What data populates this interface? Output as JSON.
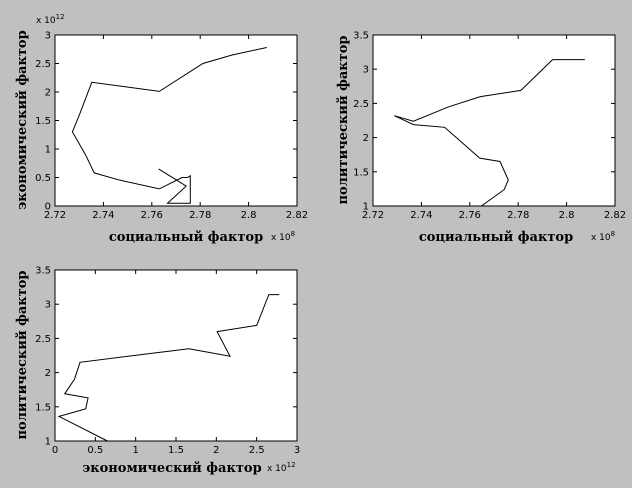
{
  "figure": {
    "background": "#c0c0c0",
    "axes_background": "#ffffff",
    "line_color": "#000000"
  },
  "chart_data": [
    {
      "type": "line",
      "xlabel": "социальный фактор",
      "ylabel": "экономический фактор",
      "x_exponent_label": "x 10",
      "x_exponent": "8",
      "y_exponent_label": "x 10",
      "y_exponent": "12",
      "xlim": [
        2.72,
        2.82
      ],
      "ylim": [
        0,
        3
      ],
      "xticks": [
        "2.72",
        "2.74",
        "2.76",
        "2.78",
        "2.8",
        "2.82"
      ],
      "yticks": [
        "0",
        "0.5",
        "1",
        "1.5",
        "2",
        "2.5",
        "3"
      ],
      "x": [
        2.8075,
        2.7932,
        2.7811,
        2.7631,
        2.7352,
        2.7301,
        2.7272,
        2.7326,
        2.7362,
        2.747,
        2.7631,
        2.7725,
        2.7748,
        2.7759,
        2.7759,
        2.7665,
        2.7742,
        2.7628
      ],
      "y": [
        2.78,
        2.65,
        2.5,
        2.01,
        2.17,
        1.6,
        1.3,
        0.9,
        0.58,
        0.45,
        0.3,
        0.5,
        0.5,
        0.53,
        0.05,
        0.05,
        0.35,
        0.65
      ]
    },
    {
      "type": "line",
      "xlabel": "социальный фактор",
      "ylabel": "политический фактор",
      "x_exponent_label": "x 10",
      "x_exponent": "8",
      "xlim": [
        2.72,
        2.82
      ],
      "ylim": [
        1,
        3.5
      ],
      "xticks": [
        "2.72",
        "2.74",
        "2.76",
        "2.78",
        "2.8",
        "2.82"
      ],
      "yticks": [
        "1",
        "1.5",
        "2",
        "2.5",
        "3",
        "3.5"
      ],
      "x": [
        2.8075,
        2.7942,
        2.7811,
        2.7644,
        2.7513,
        2.7367,
        2.7288,
        2.7318,
        2.7367,
        2.7496,
        2.7641,
        2.7725,
        2.7759,
        2.7742,
        2.7648
      ],
      "y": [
        3.14,
        3.14,
        2.69,
        2.6,
        2.45,
        2.24,
        2.32,
        2.27,
        2.19,
        2.15,
        1.7,
        1.65,
        1.38,
        1.24,
        1.0
      ]
    },
    {
      "type": "line",
      "xlabel": "экономический фактор",
      "ylabel": "политический фактор",
      "x_exponent_label": "x 10",
      "x_exponent": "12",
      "xlim": [
        0,
        3
      ],
      "ylim": [
        1,
        3.5
      ],
      "xticks": [
        "0",
        "0.5",
        "1",
        "1.5",
        "2",
        "2.5",
        "3"
      ],
      "yticks": [
        "1",
        "1.5",
        "2",
        "2.5",
        "3",
        "3.5"
      ],
      "x": [
        2.78,
        2.65,
        2.5,
        2.01,
        2.17,
        1.66,
        0.31,
        0.24,
        0.12,
        0.41,
        0.38,
        0.05,
        0.65
      ],
      "y": [
        3.14,
        3.14,
        2.69,
        2.6,
        2.24,
        2.35,
        2.15,
        1.9,
        1.69,
        1.63,
        1.47,
        1.36,
        1.0
      ]
    }
  ]
}
